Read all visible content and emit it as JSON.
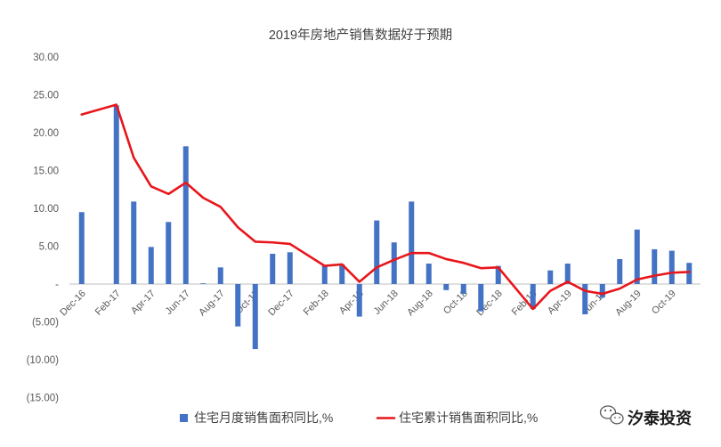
{
  "chart_data": {
    "type": "bar",
    "title": "2019年房地产销售数据好于预期",
    "xlabel": "",
    "ylabel": "",
    "categories": [
      "Dec-16",
      "",
      "Feb-17",
      "",
      "Apr-17",
      "",
      "Jun-17",
      "",
      "Aug-17",
      "",
      "Oct-17",
      "",
      "Dec-17",
      "",
      "Feb-18",
      "",
      "Apr-18",
      "",
      "Jun-18",
      "",
      "Aug-18",
      "",
      "Oct-18",
      "",
      "Dec-18",
      "",
      "Feb-19",
      "",
      "Apr-19",
      "",
      "Jun-19",
      "",
      "Aug-19",
      "",
      "Oct-19",
      ""
    ],
    "series": [
      {
        "name": "住宅月度销售面积同比,%",
        "type": "bar",
        "color": "#4472C4",
        "values": [
          9.5,
          null,
          23.6,
          10.9,
          4.9,
          8.2,
          18.2,
          0.1,
          2.2,
          -5.6,
          -8.6,
          4.0,
          4.2,
          null,
          2.4,
          2.6,
          -4.3,
          8.4,
          5.5,
          10.9,
          2.7,
          -0.8,
          -1.3,
          -3.6,
          2.4,
          null,
          -3.3,
          1.8,
          2.7,
          -4.0,
          -1.8,
          3.3,
          7.2,
          4.6,
          4.4,
          2.8
        ]
      },
      {
        "name": "住宅累计销售面积同比,%",
        "type": "line",
        "color": "#E8161B",
        "values": [
          22.4,
          null,
          23.7,
          16.7,
          12.9,
          11.9,
          13.4,
          11.4,
          10.2,
          7.5,
          5.6,
          5.5,
          5.3,
          null,
          2.4,
          2.6,
          0.3,
          2.2,
          3.2,
          4.1,
          4.1,
          3.3,
          2.8,
          2.1,
          2.2,
          null,
          -3.3,
          -0.9,
          0.3,
          -0.9,
          -1.3,
          -0.6,
          0.6,
          1.1,
          1.5,
          1.6
        ]
      }
    ],
    "ylim": [
      -15,
      30
    ],
    "yticks": [
      30,
      25,
      20,
      15,
      10,
      5,
      0,
      -5,
      -10,
      -15
    ],
    "ytick_labels": [
      "30.00",
      "25.00",
      "20.00",
      "15.00",
      "10.00",
      "5.00",
      "-",
      "(5.00)",
      "(10.00)",
      "(15.00)"
    ],
    "grid": false,
    "legend": "bottom"
  },
  "watermark": {
    "icon": "wechat-icon",
    "text": "汐泰投资"
  }
}
